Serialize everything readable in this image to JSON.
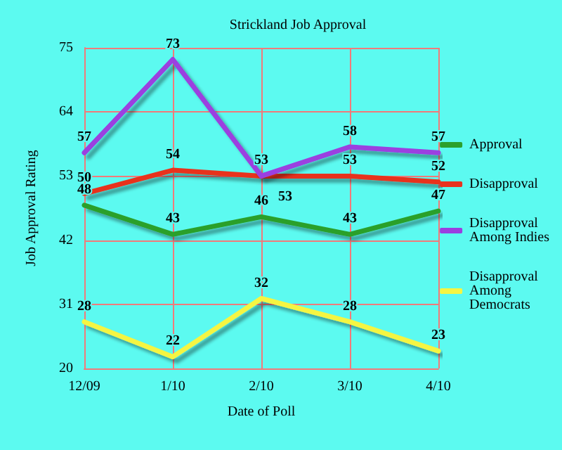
{
  "chart_data": {
    "type": "line",
    "title": "Strickland Job Approval",
    "xlabel": "Date of Poll",
    "ylabel": "Job Approval Rating",
    "categories": [
      "12/09",
      "1/10",
      "2/10",
      "3/10",
      "4/10"
    ],
    "series": [
      {
        "name": "Approval",
        "color": "#2ca02c",
        "values": [
          48,
          43,
          46,
          43,
          47
        ]
      },
      {
        "name": "Disapproval",
        "color": "#e8321e",
        "values": [
          50,
          54,
          53,
          53,
          52
        ]
      },
      {
        "name": "Disapproval Among Indies",
        "color": "#9b3fe0",
        "values": [
          57,
          73,
          53,
          58,
          57
        ]
      },
      {
        "name": "Disapproval Among Democrats",
        "color": "#f5f542",
        "values": [
          28,
          22,
          32,
          28,
          23
        ]
      }
    ],
    "ylim": [
      20,
      75
    ],
    "yticks": [
      20,
      31,
      42,
      53,
      64,
      75
    ],
    "grid": true,
    "legend": "right",
    "data_labels": true,
    "marker": "none",
    "line_style": "solid"
  }
}
